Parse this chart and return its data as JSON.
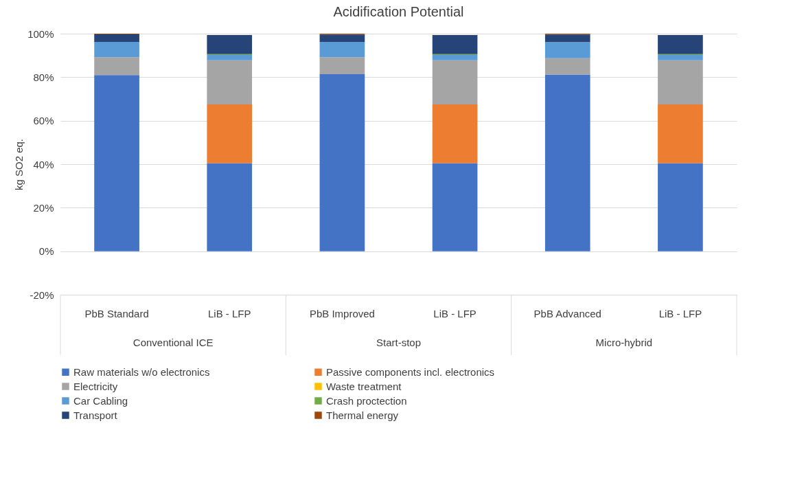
{
  "chart_data": {
    "type": "bar",
    "title": "Acidification Potential",
    "ylabel": "kg SO2 eq.",
    "categories": [
      "PbB Standard",
      "LiB - LFP",
      "PbB Improved",
      "LiB - LFP",
      "PbB Advanced",
      "LiB - LFP"
    ],
    "annotations": [
      "Conventional ICE",
      "Start-stop",
      "Micro-hybrid"
    ],
    "stacked": true,
    "grid": "y",
    "legend": "bottom",
    "ylim": [
      -20,
      100
    ],
    "yticks": [
      {
        "value": -20,
        "label": "-20%"
      },
      {
        "value": 0,
        "label": "0%"
      },
      {
        "value": 20,
        "label": "20%"
      },
      {
        "value": 40,
        "label": "40%"
      },
      {
        "value": 60,
        "label": "60%"
      },
      {
        "value": 80,
        "label": "80%"
      },
      {
        "value": 100,
        "label": "100%"
      }
    ],
    "series": [
      {
        "name": "Raw materials w/o electronics",
        "color": "#4472c4",
        "values": [
          81,
          40.5,
          81.4,
          40.5,
          81.2,
          40.5
        ]
      },
      {
        "name": "Passive components incl. electronics",
        "color": "#ed7d31",
        "values": [
          0,
          27,
          0,
          27,
          0,
          27
        ]
      },
      {
        "name": "Electricity",
        "color": "#a5a5a5",
        "values": [
          8.2,
          20.3,
          7.8,
          20.3,
          7.5,
          20.3
        ]
      },
      {
        "name": "Waste treatment",
        "color": "#ffc000",
        "values": [
          0,
          0,
          0,
          0,
          0,
          0
        ]
      },
      {
        "name": "Car Cabling",
        "color": "#5b9bd5",
        "values": [
          7,
          2.4,
          7,
          2.4,
          7.4,
          2.4
        ]
      },
      {
        "name": "Crash proctection",
        "color": "#70ad47",
        "values": [
          0,
          0.4,
          0,
          0.4,
          0,
          0.4
        ]
      },
      {
        "name": "Transport",
        "color": "#264478",
        "values": [
          3.5,
          8.8,
          3.4,
          8.8,
          3.5,
          8.8
        ]
      },
      {
        "name": "Thermal energy",
        "color": "#9e480e",
        "values": [
          0.3,
          0,
          0.4,
          0,
          0.4,
          0
        ]
      }
    ]
  }
}
